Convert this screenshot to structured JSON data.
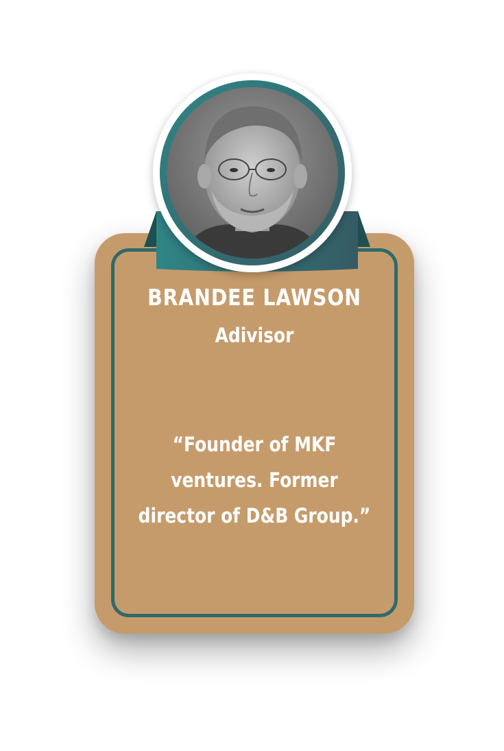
{
  "profile": {
    "name": "BRANDEE LAWSON",
    "role": "Adivisor",
    "quote": "“Founder of MKF ventures. Former director of D&B Group.”"
  },
  "icons": {
    "avatar": "person-photo-icon",
    "ribbon": "ribbon-banner-icon"
  },
  "colors": {
    "card": "#c69b6b",
    "accent_teal": "#2f8585",
    "accent_dark": "#355b64",
    "text": "#ffffff"
  }
}
